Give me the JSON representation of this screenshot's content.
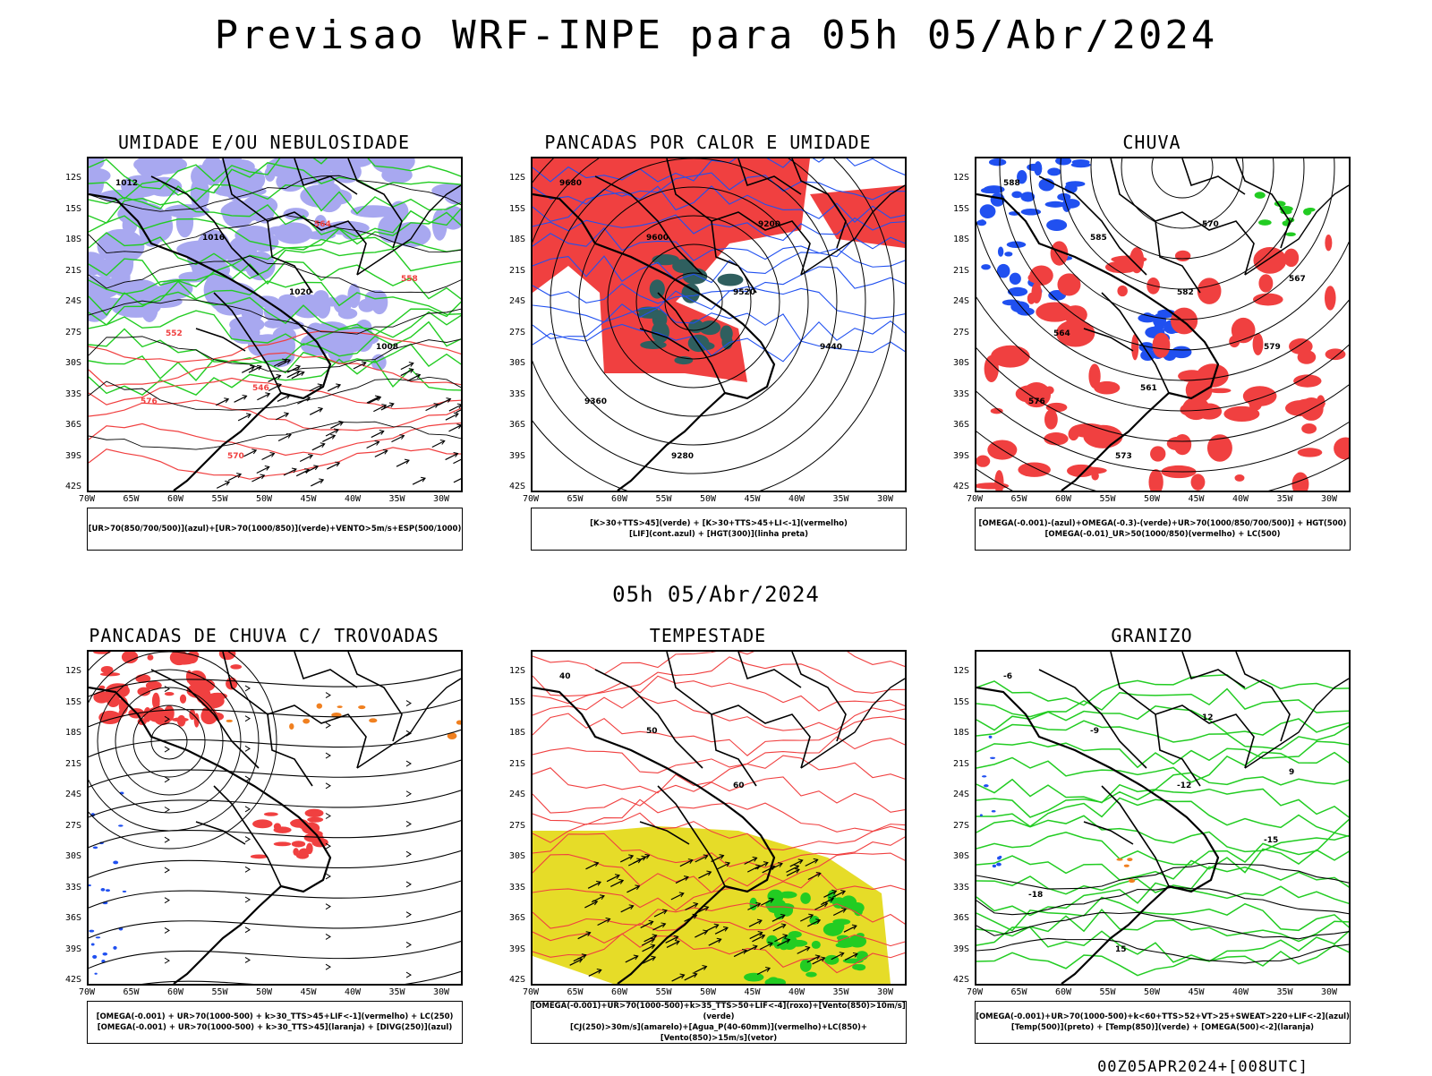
{
  "title": "Previsao WRF-INPE  para 05h 05/Abr/2024",
  "mid_date": "05h 05/Abr/2024",
  "footer": "00Z05APR2024+[008UTC]",
  "axis": {
    "lat": [
      "12S",
      "15S",
      "18S",
      "21S",
      "24S",
      "27S",
      "30S",
      "33S",
      "36S",
      "39S",
      "42S"
    ],
    "lon": [
      "70W",
      "65W",
      "60W",
      "55W",
      "50W",
      "45W",
      "40W",
      "35W",
      "30W"
    ]
  },
  "colors": {
    "blue_fill": "#a8a8f0",
    "green": "#22cc22",
    "red": "#f04040",
    "dark_teal": "#2f5f5f",
    "yellow": "#e6dc28",
    "blue": "#2050f0",
    "orange": "#f08020"
  },
  "panels": [
    {
      "id": "umidade",
      "title": "UMIDADE E/OU NEBULOSIDADE",
      "legend": [
        "[UR>70(850/700/500)](azul)+[UR>70(1000/850)](verde)+VENTO>5m/s+ESP(500/1000)"
      ],
      "contour_labels": [
        "1012",
        "1016",
        "1020",
        "1008",
        "576",
        "570",
        "564",
        "558",
        "552",
        "546"
      ]
    },
    {
      "id": "pancadas-calor",
      "title": "PANCADAS POR CALOR E UMIDADE",
      "legend": [
        "[K>30+TTS>45](verde) + [K>30+TTS>45+LI<-1](vermelho)",
        "[LIF](cont.azul) + [HGT(300)](linha preta)"
      ],
      "contour_labels": [
        "9680",
        "9600",
        "9520",
        "9440",
        "9360",
        "9280",
        "9200"
      ]
    },
    {
      "id": "chuva",
      "title": "CHUVA",
      "legend": [
        "[OMEGA(-0.001)-(azul)+OMEGA(-0.3)-(verde)+UR>70(1000/850/700/500)] + HGT(500)",
        "[OMEGA(-0.01)_UR>50(1000/850)(vermelho) + LC(500)"
      ],
      "contour_labels": [
        "588",
        "585",
        "582",
        "579",
        "576",
        "573",
        "570",
        "567",
        "564",
        "561"
      ]
    },
    {
      "id": "pancadas-trovoadas",
      "title": "PANCADAS DE CHUVA C/ TROVOADAS",
      "legend": [
        "[OMEGA(-0.001) + UR>70(1000-500) + k>30_TTS>45+LIF<-1](vermelho) + LC(250)",
        "[OMEGA(-0.001) + UR>70(1000-500) + k>30_TTS>45](laranja) + [DIVG(250)](azul)"
      ],
      "contour_labels": []
    },
    {
      "id": "tempestade",
      "title": "TEMPESTADE",
      "legend": [
        "[OMEGA(-0.001)+UR>70(1000-500)+k>35_TTS>50+LIF<-4](roxo)+[Vento(850)>10m/s](verde)",
        "[CJ(250)>30m/s](amarelo)+[Agua_P(40-60mm)](vermelho)+LC(850)+[Vento(850)>15m/s](vetor)"
      ],
      "contour_labels": [
        "40",
        "50",
        "60"
      ]
    },
    {
      "id": "granizo",
      "title": "GRANIZO",
      "legend": [
        "[OMEGA(-0.001)+UR>70(1000-500)+k<60+TTS>52+VT>25+SWEAT>220+LIF<-2](azul)",
        "[Temp(500)](preto) + [Temp(850)](verde) + [OMEGA(500)<-2](laranja)"
      ],
      "contour_labels": [
        "-6",
        "-9",
        "-12",
        "-15",
        "-18",
        "15",
        "12",
        "9"
      ]
    }
  ]
}
